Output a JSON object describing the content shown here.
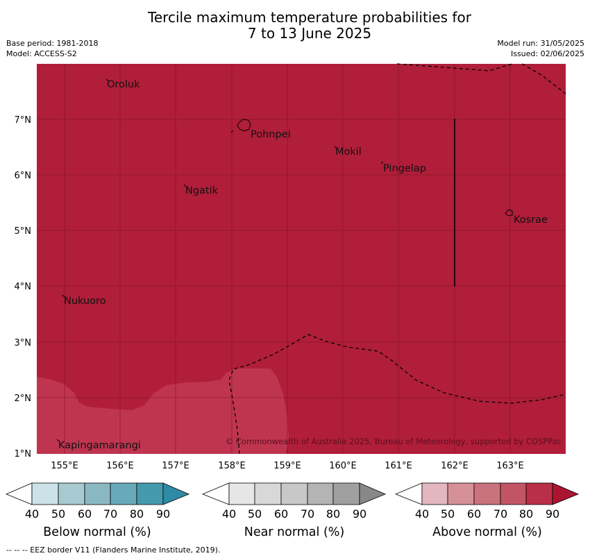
{
  "title_line1": "Tercile maximum temperature probabilities for",
  "title_line2": "7 to 13 June 2025",
  "meta": {
    "base_period": "Base period: 1981-2018",
    "model": "Model: ACCESS-S2",
    "model_run": "Model run: 31/05/2025",
    "issued": "Issued: 02/06/2025"
  },
  "map": {
    "places": [
      "Oroluk",
      "Pohnpei",
      "Mokil",
      "Pingelap",
      "Ngatik",
      "Kosrae",
      "Nukuoro",
      "Kapingamarangi"
    ],
    "lat_labels": [
      "7°N",
      "6°N",
      "5°N",
      "4°N",
      "3°N",
      "2°N",
      "1°N"
    ],
    "lon_labels": [
      "155°E",
      "156°E",
      "157°E",
      "158°E",
      "159°E",
      "160°E",
      "161°E",
      "162°E",
      "163°E"
    ],
    "copyright": "© Commonwealth of Australia 2025, Bureau of Meteorology, supported by COSPPac",
    "colors": {
      "above_90": "#b01e39",
      "above_80": "#bf3550"
    }
  },
  "colorbars": {
    "ticks": [
      "40",
      "50",
      "60",
      "70",
      "80",
      "90"
    ],
    "below": {
      "title": "Below normal (%)",
      "colors": [
        "#ffffff",
        "#cbe3e8",
        "#a7c9d0",
        "#8ab8c2",
        "#68aab9",
        "#4599ad",
        "#2e8aa5"
      ]
    },
    "near": {
      "title": "Near normal (%)",
      "colors": [
        "#ffffff",
        "#e6e6e6",
        "#d8d8d8",
        "#c8c8c8",
        "#b4b4b4",
        "#a0a0a0",
        "#888888"
      ]
    },
    "above": {
      "title": "Above normal (%)",
      "colors": [
        "#ffffff",
        "#e2b7c0",
        "#d59098",
        "#ca727d",
        "#c25565",
        "#b92e48",
        "#ab1431"
      ]
    }
  },
  "footer": "--  --  -- EEZ border V11 (Flanders Marine Institute, 2019)."
}
